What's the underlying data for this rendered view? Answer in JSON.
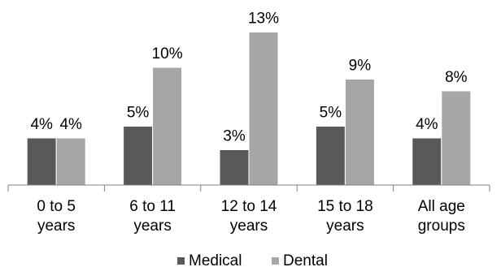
{
  "chart_data": {
    "type": "bar",
    "title": "",
    "xlabel": "",
    "ylabel": "",
    "categories": [
      [
        "0 to 5",
        "years"
      ],
      [
        "6 to 11",
        "years"
      ],
      [
        "12 to 14",
        "years"
      ],
      [
        "15 to 18",
        "years"
      ],
      [
        "All age",
        "groups"
      ]
    ],
    "series": [
      {
        "name": "Medical",
        "color": "#595959",
        "values": [
          4,
          5,
          3,
          5,
          4
        ],
        "labels": [
          "4%",
          "5%",
          "3%",
          "5%",
          "4%"
        ]
      },
      {
        "name": "Dental",
        "color": "#a6a6a6",
        "values": [
          4,
          10,
          13,
          9,
          8
        ],
        "labels": [
          "4%",
          "10%",
          "13%",
          "9%",
          "8%"
        ]
      }
    ],
    "ylim": [
      0,
      14
    ],
    "unit": "%",
    "grid": false,
    "legend_position": "bottom"
  }
}
